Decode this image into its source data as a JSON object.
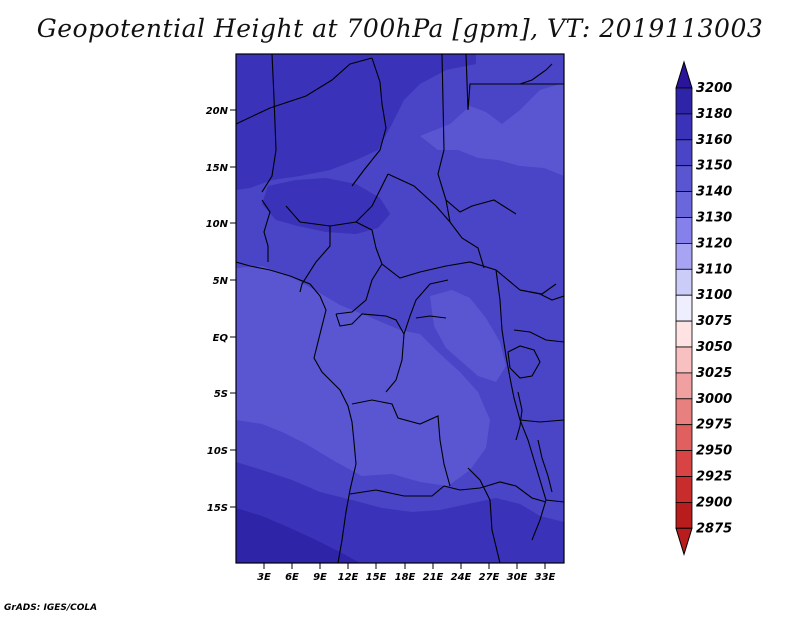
{
  "title": "Geopotential Height at 700hPa [gpm], VT: 2019113003",
  "credit": "GrADS: IGES/COLA",
  "chart_data": {
    "type": "heatmap",
    "title": "Geopotential Height at 700hPa [gpm], VT: 2019113003",
    "lon_range": [
      0,
      35
    ],
    "lat_range": [
      -20,
      25
    ],
    "lon_ticks": [
      "3E",
      "6E",
      "9E",
      "12E",
      "15E",
      "18E",
      "21E",
      "24E",
      "27E",
      "30E",
      "33E"
    ],
    "lon_tick_values": [
      3,
      6,
      9,
      12,
      15,
      18,
      21,
      24,
      27,
      30,
      33
    ],
    "lat_ticks": [
      "20N",
      "15N",
      "10N",
      "5N",
      "EQ",
      "5S",
      "10S",
      "15S"
    ],
    "lat_tick_values": [
      20,
      15,
      10,
      5,
      0,
      -5,
      -10,
      -15
    ],
    "legend": {
      "position": "right",
      "levels": [
        "3200",
        "3180",
        "3160",
        "3150",
        "3140",
        "3130",
        "3120",
        "3110",
        "3100",
        "3075",
        "3050",
        "3025",
        "3000",
        "2975",
        "2950",
        "2925",
        "2900",
        "2875"
      ],
      "colors": [
        "#2a1499",
        "#2e24a8",
        "#3a32b8",
        "#4a44c6",
        "#5a56d2",
        "#6a66dc",
        "#8580ec",
        "#a8a4f4",
        "#ccccf8",
        "#eeeeff",
        "#ffe2e2",
        "#f8c0c0",
        "#f0a0a0",
        "#e88080",
        "#e06060",
        "#d84444",
        "#c82c2c",
        "#b81c1c"
      ]
    },
    "field_colors": {
      "band_3140": "#4a44c6",
      "band_3130": "#5a56d2",
      "band_3150": "#3a32b8",
      "band_3160": "#2e24a8"
    }
  }
}
